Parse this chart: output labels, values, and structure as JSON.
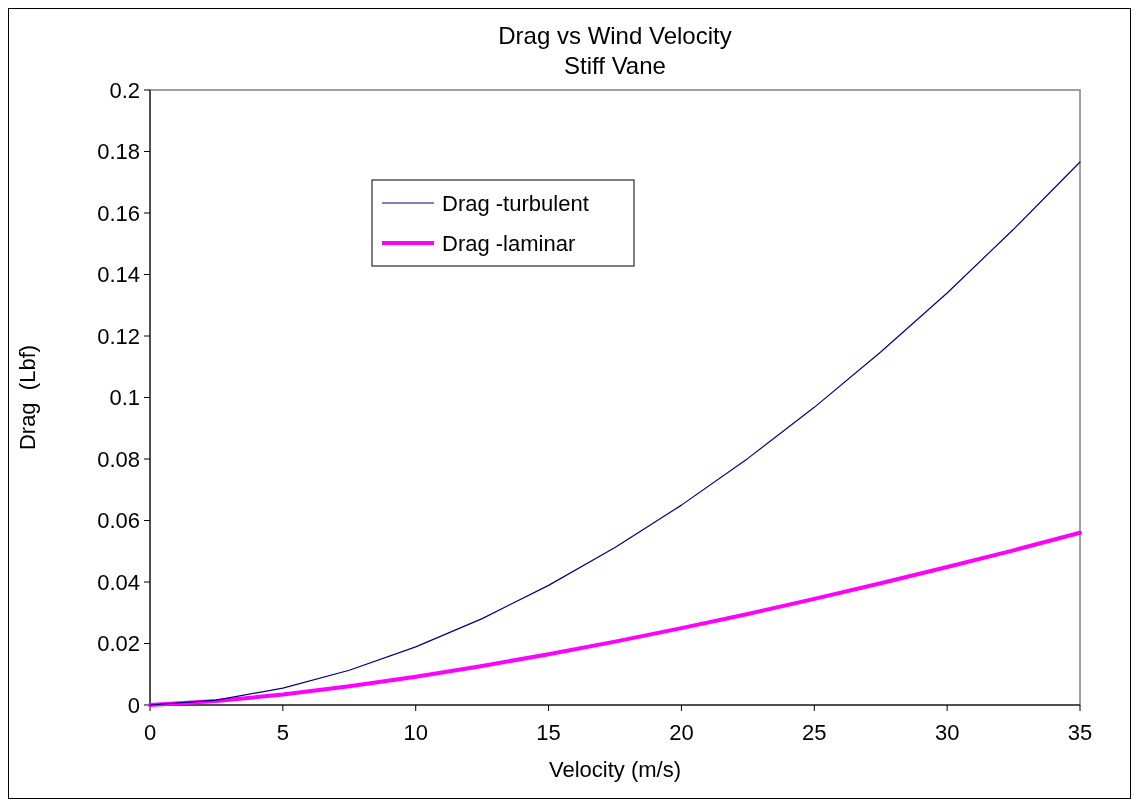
{
  "chart_data": {
    "type": "line",
    "title": "Drag vs Wind Velocity",
    "subtitle": "Stiff Vane",
    "xlabel": "Velocity (m/s)",
    "ylabel": "Drag  (Lbf)",
    "x": [
      0,
      2.5,
      5,
      7.5,
      10,
      12.5,
      15,
      17.5,
      20,
      22.5,
      25,
      27.5,
      30,
      32.5,
      35
    ],
    "series": [
      {
        "name": "Drag -turbulent",
        "color": "#000080",
        "values": [
          0,
          0.0016,
          0.0055,
          0.0113,
          0.0189,
          0.0281,
          0.0389,
          0.0512,
          0.065,
          0.0802,
          0.0968,
          0.1148,
          0.134,
          0.1547,
          0.1766
        ]
      },
      {
        "name": "Drag -laminar",
        "color": "#ff00ff",
        "values": [
          0,
          0.0013,
          0.0034,
          0.0061,
          0.0092,
          0.0127,
          0.0165,
          0.0206,
          0.025,
          0.0296,
          0.0345,
          0.0396,
          0.0449,
          0.0503,
          0.056
        ]
      }
    ],
    "xlim": [
      0,
      35
    ],
    "xticks": [
      0,
      5,
      10,
      15,
      20,
      25,
      30,
      35
    ],
    "ylim": [
      0,
      0.2
    ],
    "yticks": [
      0,
      0.02,
      0.04,
      0.06,
      0.08,
      0.1,
      0.12,
      0.14,
      0.16,
      0.18,
      0.2
    ],
    "legend": "top left",
    "marker": "none",
    "line_style": "solid"
  }
}
